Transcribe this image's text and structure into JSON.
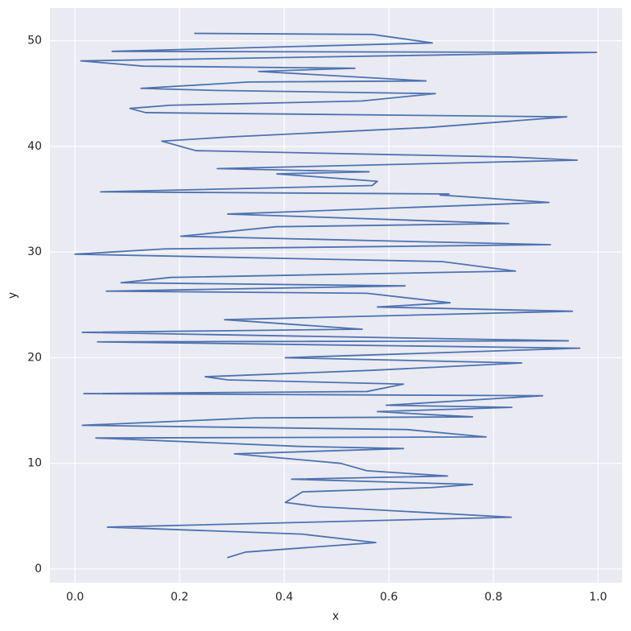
{
  "chart_data": {
    "type": "line",
    "x_label": "x",
    "y_label": "y",
    "color": "#4c72b0",
    "grid": true,
    "x": [
      0.291,
      0.326,
      0.575,
      0.434,
      0.062,
      0.834,
      0.465,
      0.402,
      0.435,
      0.68,
      0.76,
      0.414,
      0.712,
      0.558,
      0.508,
      0.305,
      0.628,
      0.431,
      0.04,
      0.786,
      0.634,
      0.014,
      0.343,
      0.76,
      0.683,
      0.578,
      0.835,
      0.595,
      0.894,
      0.017,
      0.558,
      0.628,
      0.292,
      0.249,
      0.565,
      0.854,
      0.402,
      0.965,
      0.043,
      0.943,
      0.014,
      0.549,
      0.286,
      0.951,
      0.578,
      0.717,
      0.558,
      0.06,
      0.631,
      0.088,
      0.183,
      0.842,
      0.702,
      0.0,
      0.172,
      0.909,
      0.202,
      0.385,
      0.829,
      0.352,
      0.292,
      0.906,
      0.698,
      0.715,
      0.049,
      0.568,
      0.578,
      0.386,
      0.562,
      0.272,
      0.96,
      0.832,
      0.231,
      0.166,
      0.295,
      0.677,
      0.94,
      0.135,
      0.105,
      0.183,
      0.548,
      0.689,
      0.269,
      0.126,
      0.332,
      0.671,
      0.351,
      0.535,
      0.131,
      0.011,
      0.997,
      0.071,
      0.683,
      0.569,
      0.228
    ],
    "values": [
      1.07,
      1.6,
      2.5,
      3.3,
      3.96,
      4.9,
      5.9,
      6.3,
      7.3,
      7.7,
      8.0,
      8.5,
      8.8,
      9.3,
      10.0,
      10.9,
      11.4,
      11.6,
      12.4,
      12.5,
      13.2,
      13.6,
      14.3,
      14.4,
      14.6,
      14.9,
      15.3,
      15.5,
      16.4,
      16.6,
      16.8,
      17.5,
      17.9,
      18.2,
      18.8,
      19.5,
      20.0,
      20.9,
      21.5,
      21.6,
      22.4,
      22.7,
      23.6,
      24.4,
      24.8,
      25.2,
      26.1,
      26.3,
      26.8,
      27.1,
      27.6,
      28.2,
      29.1,
      29.8,
      30.3,
      30.7,
      31.5,
      32.4,
      32.7,
      33.5,
      33.6,
      34.7,
      35.4,
      35.5,
      35.7,
      36.3,
      36.7,
      37.4,
      37.6,
      37.9,
      38.7,
      39.0,
      39.6,
      40.5,
      40.9,
      41.8,
      42.8,
      43.2,
      43.6,
      43.9,
      44.3,
      45.0,
      45.3,
      45.5,
      46.1,
      46.2,
      47.1,
      47.4,
      47.6,
      48.1,
      48.9,
      49.0,
      49.8,
      50.6,
      50.7
    ],
    "xlim": [
      -0.048,
      1.046
    ],
    "xticks": [
      {
        "value": 0,
        "label": "0.0"
      },
      {
        "value": 0.2,
        "label": "0.2"
      },
      {
        "value": 0.4,
        "label": "0.4"
      },
      {
        "value": 0.6,
        "label": "0.6"
      },
      {
        "value": 0.8,
        "label": "0.8"
      },
      {
        "value": 1,
        "label": "1.0"
      }
    ],
    "ylim": [
      -1.3,
      53.1
    ],
    "yticks": [
      0,
      10,
      20,
      30,
      40,
      50
    ]
  }
}
